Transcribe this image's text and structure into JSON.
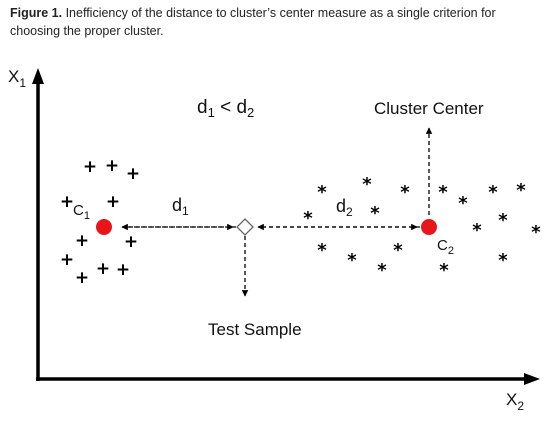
{
  "caption": {
    "label": "Figure 1.",
    "text": "Inefficiency of the distance to cluster’s center measure as a single criterion for choosing the proper cluster."
  },
  "diagram": {
    "y_axis": {
      "base": "X",
      "sub": "1"
    },
    "x_axis": {
      "base": "X",
      "sub": "2"
    },
    "inequality": {
      "a": "d",
      "a_sub": "1",
      "op": " < ",
      "b": "d",
      "b_sub": "2"
    },
    "d1": {
      "base": "d",
      "sub": "1"
    },
    "d2": {
      "base": "d",
      "sub": "2"
    },
    "c1": {
      "base": "C",
      "sub": "1"
    },
    "c2": {
      "base": "C",
      "sub": "2"
    },
    "cluster_center": "Cluster Center",
    "test_sample": "Test Sample",
    "plus_symbol": "+",
    "star_symbol": "*",
    "colors": {
      "center": "#e8161a",
      "axis": "#000000",
      "text": "#111111",
      "caption": "#222222"
    }
  }
}
